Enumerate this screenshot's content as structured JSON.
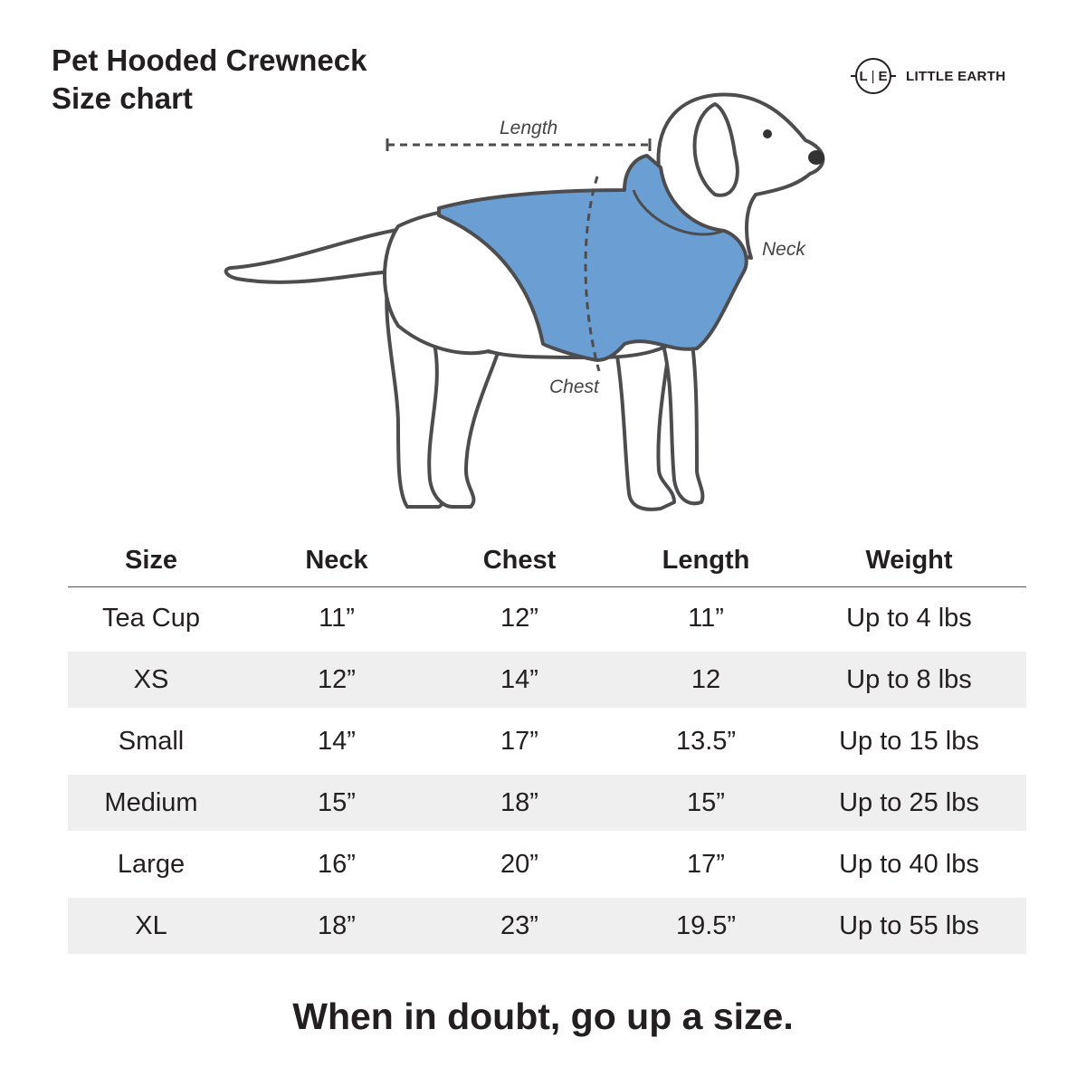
{
  "title": {
    "line1": "Pet Hooded Crewneck",
    "line2": "Size chart"
  },
  "logo": {
    "mark_left": "L",
    "mark_right": "E",
    "text": "LITTLE EARTH"
  },
  "diagram": {
    "labels": {
      "length": "Length",
      "neck": "Neck",
      "chest": "Chest"
    },
    "colors": {
      "hoodie": "#6b9fd4",
      "outline": "#4d4d4f"
    }
  },
  "table": {
    "headers": [
      "Size",
      "Neck",
      "Chest",
      "Length",
      "Weight"
    ],
    "rows": [
      [
        "Tea Cup",
        "11”",
        "12”",
        "11”",
        "Up to 4 lbs"
      ],
      [
        "XS",
        "12”",
        "14”",
        "12",
        "Up to 8 lbs"
      ],
      [
        "Small",
        "14”",
        "17”",
        "13.5”",
        "Up to 15 lbs"
      ],
      [
        "Medium",
        "15”",
        "18”",
        "15”",
        "Up to 25 lbs"
      ],
      [
        "Large",
        "16”",
        "20”",
        "17”",
        "Up to 40 lbs"
      ],
      [
        "XL",
        "18”",
        "23”",
        "19.5”",
        "Up to 55 lbs"
      ]
    ]
  },
  "footer": "When in doubt, go up a size."
}
